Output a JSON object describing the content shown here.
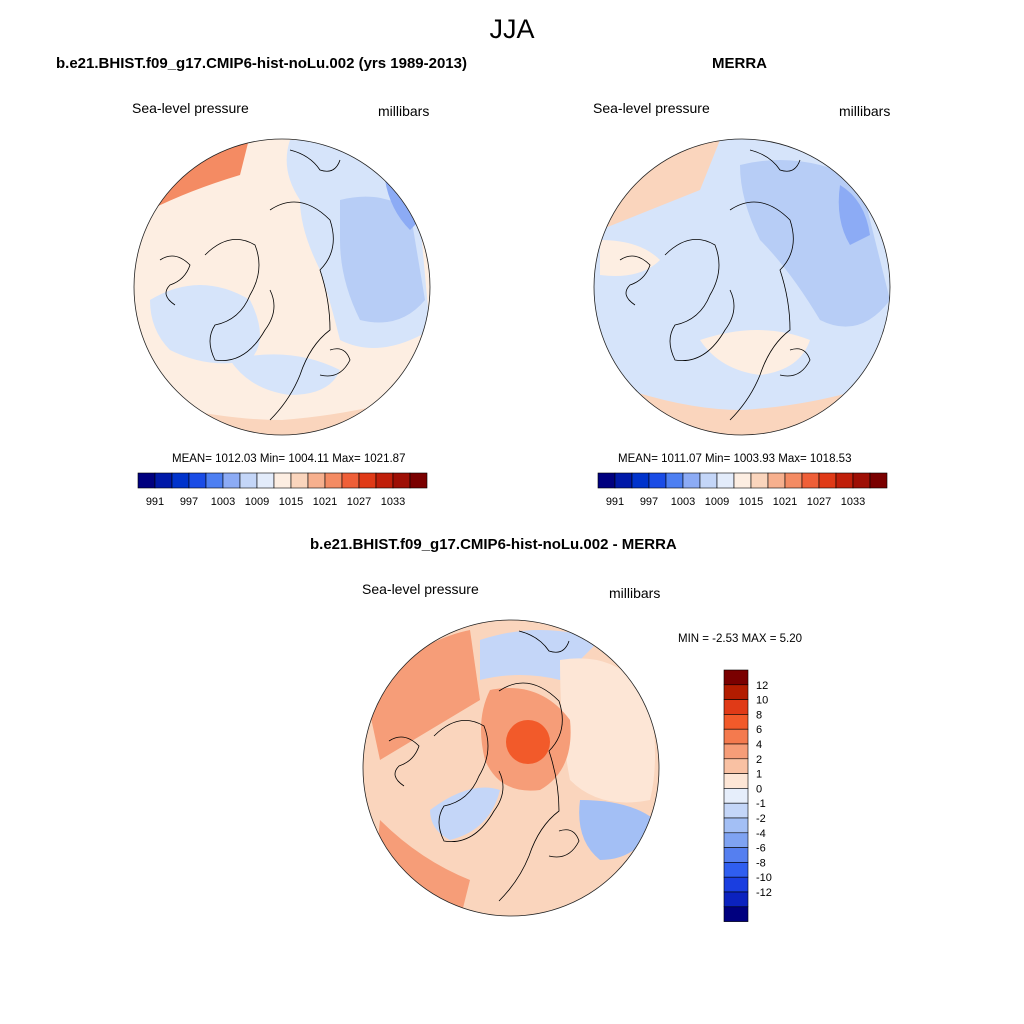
{
  "figure_title": "JJA",
  "panels": [
    {
      "id": "model",
      "title": "b.e21.BHIST.f09_g17.CMIP6-hist-noLu.002 (yrs 1989-2013)",
      "variable": "Sea-level pressure",
      "units": "millibars",
      "stats": "MEAN= 1012.03  Min= 1004.11  Max= 1021.87"
    },
    {
      "id": "obs",
      "title": "MERRA",
      "variable": "Sea-level pressure",
      "units": "millibars",
      "stats": "MEAN= 1011.07  Min= 1003.93  Max= 1018.53"
    },
    {
      "id": "diff",
      "title": "b.e21.BHIST.f09_g17.CMIP6-hist-noLu.002 - MERRA",
      "variable": "Sea-level pressure",
      "units": "millibars",
      "stats": "MIN =  -2.53 MAX =   5.20"
    }
  ],
  "abs_colorbar": {
    "colors": [
      "#00007f",
      "#0019a8",
      "#0033cc",
      "#1a4ce6",
      "#4d7ff2",
      "#8cabf5",
      "#c4d6f8",
      "#e3ecfb",
      "#fdeee2",
      "#fad5bd",
      "#f7b08e",
      "#f48b63",
      "#ef5f38",
      "#e03a17",
      "#c01f0a",
      "#9e0f05",
      "#7a0000"
    ],
    "tick_labels": [
      "991",
      "997",
      "1003",
      "1009",
      "1015",
      "1021",
      "1027",
      "1033"
    ]
  },
  "diff_colorbar": {
    "colors": [
      "#7a0000",
      "#b31c00",
      "#e03a17",
      "#f25a2a",
      "#f47a4e",
      "#f69d78",
      "#f9c1a3",
      "#fde6d6",
      "#e6eefb",
      "#c4d6f8",
      "#a3bff5",
      "#7fa3f2",
      "#557ff0",
      "#2f5ef0",
      "#1a3ee0",
      "#0b22bf",
      "#00007f"
    ],
    "tick_labels": [
      "12",
      "10",
      "8",
      "6",
      "4",
      "2",
      "1",
      "0",
      "-1",
      "-2",
      "-4",
      "-6",
      "-8",
      "-10",
      "-12"
    ]
  },
  "map_colors": {
    "abs_bg": "#fdeee2",
    "abs_light_blue": "#d6e4fa",
    "abs_blue": "#b7cdf6",
    "abs_mid_blue": "#8cabf5",
    "abs_orange": "#fad5bd",
    "abs_dark_orange": "#f48b63",
    "diff_bg": "#fad5bd",
    "diff_orange": "#f69d78",
    "diff_red": "#f25a2a",
    "diff_light": "#fde6d6",
    "diff_blue": "#c4d6f8",
    "diff_mid_blue": "#a3bff5"
  }
}
